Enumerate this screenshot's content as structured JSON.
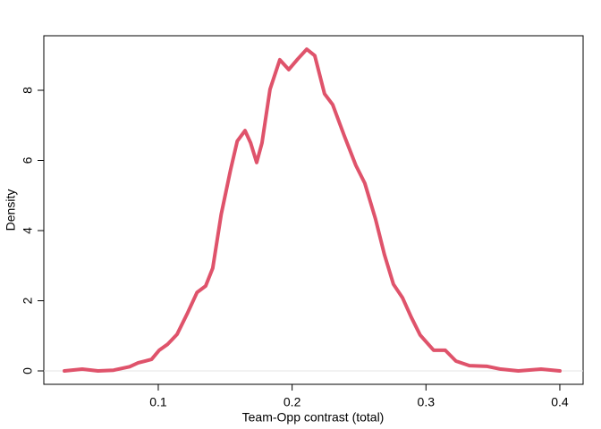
{
  "chart_data": {
    "type": "line",
    "xlabel": "Team-Opp contrast (total)",
    "ylabel": "Density",
    "x": [
      0.0299,
      0.0432,
      0.055,
      0.0666,
      0.0786,
      0.085,
      0.09,
      0.095,
      0.1007,
      0.107,
      0.114,
      0.122,
      0.129,
      0.1354,
      0.1407,
      0.147,
      0.154,
      0.159,
      0.1648,
      0.169,
      0.1735,
      0.1775,
      0.1835,
      0.1908,
      0.1975,
      0.2042,
      0.2109,
      0.2169,
      0.2242,
      0.2303,
      0.239,
      0.2476,
      0.2543,
      0.2623,
      0.269,
      0.2757,
      0.2824,
      0.289,
      0.2957,
      0.3057,
      0.3144,
      0.3224,
      0.3325,
      0.3458,
      0.3559,
      0.369,
      0.386,
      0.4
    ],
    "series": [
      {
        "color": "#df536b",
        "values": [
          0,
          0.05,
          0,
          0.02,
          0.12,
          0.23,
          0.28,
          0.33,
          0.59,
          0.76,
          1.04,
          1.66,
          2.24,
          2.42,
          2.93,
          4.46,
          5.73,
          6.55,
          6.85,
          6.5,
          5.94,
          6.5,
          8.03,
          8.87,
          8.59,
          8.89,
          9.17,
          8.99,
          7.9,
          7.59,
          6.7,
          5.86,
          5.35,
          4.33,
          3.31,
          2.47,
          2.09,
          1.53,
          1.02,
          0.59,
          0.59,
          0.28,
          0.15,
          0.13,
          0.05,
          0,
          0.05,
          0
        ]
      }
    ],
    "xlim": [
      0.0145,
      0.4174
    ],
    "xticks": [
      0.1,
      0.2,
      0.3,
      0.4
    ],
    "ylim": [
      -0.382,
      9.554
    ],
    "yticks": [
      0,
      2,
      4,
      6,
      8
    ],
    "zero_line": true
  }
}
